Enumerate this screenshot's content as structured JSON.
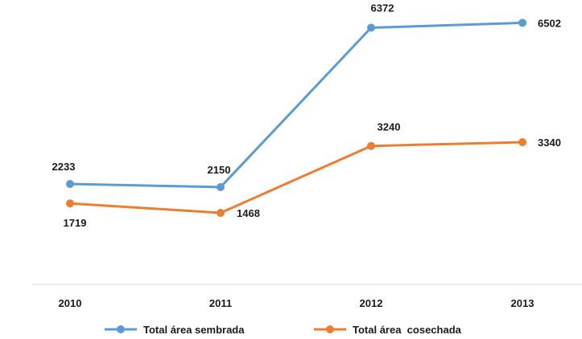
{
  "chart_data": {
    "type": "line",
    "categories": [
      "2010",
      "2011",
      "2012",
      "2013"
    ],
    "series": [
      {
        "name": "Total área sembrada",
        "values": [
          2233,
          2150,
          6372,
          6502
        ],
        "color": "#5b9bd5",
        "value_labels": [
          "2233",
          "2150",
          "6372",
          "6502"
        ]
      },
      {
        "name": "Total área  cosechada",
        "values": [
          1719,
          1468,
          3240,
          3340
        ],
        "color": "#ed7d31",
        "value_labels": [
          "1719",
          "1468",
          "3240",
          "3340"
        ]
      }
    ],
    "title": "",
    "xlabel": "",
    "ylabel": "",
    "ylim": [
      0,
      7000
    ],
    "grid": false,
    "legend": "bottom"
  }
}
